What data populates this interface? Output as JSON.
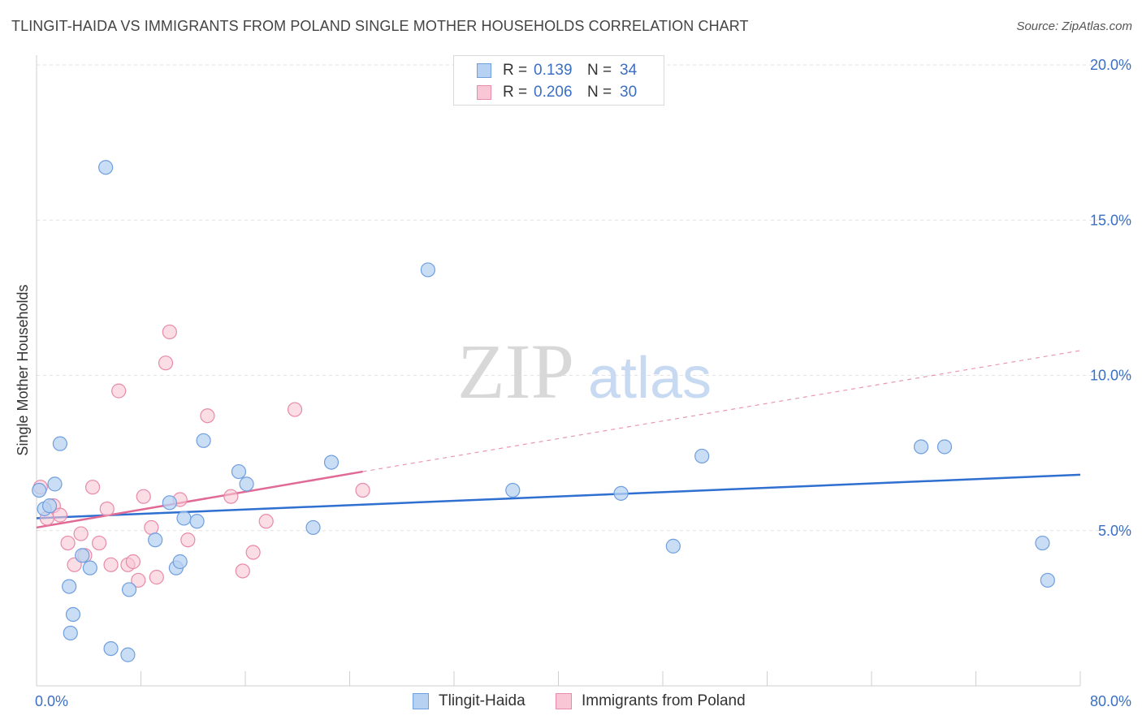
{
  "header": {
    "title": "TLINGIT-HAIDA VS IMMIGRANTS FROM POLAND SINGLE MOTHER HOUSEHOLDS CORRELATION CHART",
    "source": "Source: ZipAtlas.com"
  },
  "watermark": {
    "zip": "ZIP",
    "atlas": "atlas"
  },
  "legend": {
    "r_label": "R =",
    "n_label": "N =",
    "series": [
      {
        "r": "0.139",
        "n": "34"
      },
      {
        "r": "0.206",
        "n": "30"
      }
    ]
  },
  "colors": {
    "blue_fill": "#b7d1f2",
    "blue_stroke": "#6f9fe0",
    "blue_line": "#2f6fd0",
    "pink_fill": "#f8c6d4",
    "pink_stroke": "#e88aa8",
    "pink_line": "#e06a95",
    "axis_label": "#3a6fc4"
  },
  "chart_data": {
    "type": "scatter",
    "title": "TLINGIT-HAIDA VS IMMIGRANTS FROM POLAND SINGLE MOTHER HOUSEHOLDS CORRELATION CHART",
    "xlabel": "",
    "ylabel": "Single Mother Households",
    "xlim": [
      0,
      80
    ],
    "ylim": [
      0,
      20
    ],
    "x_tick_labels": [
      "0.0%",
      "80.0%"
    ],
    "y_ticks": [
      5,
      10,
      15,
      20
    ],
    "y_tick_labels": [
      "5.0%",
      "10.0%",
      "15.0%",
      "20.0%"
    ],
    "grid": true,
    "legend_position": "top-center",
    "series": [
      {
        "name": "Tlingit-Haida",
        "r": 0.139,
        "n": 34,
        "trend": {
          "x0": 0,
          "y0": 5.4,
          "x1": 80,
          "y1": 6.8
        },
        "points": [
          [
            0.2,
            6.3
          ],
          [
            0.6,
            5.7
          ],
          [
            1.0,
            5.8
          ],
          [
            1.4,
            6.5
          ],
          [
            1.8,
            7.8
          ],
          [
            2.5,
            3.2
          ],
          [
            2.8,
            2.3
          ],
          [
            2.6,
            1.7
          ],
          [
            3.5,
            4.2
          ],
          [
            4.1,
            3.8
          ],
          [
            5.3,
            16.7
          ],
          [
            5.7,
            1.2
          ],
          [
            7.0,
            1.0
          ],
          [
            7.1,
            3.1
          ],
          [
            9.1,
            4.7
          ],
          [
            10.2,
            5.9
          ],
          [
            10.7,
            3.8
          ],
          [
            11.0,
            4.0
          ],
          [
            11.3,
            5.4
          ],
          [
            12.3,
            5.3
          ],
          [
            12.8,
            7.9
          ],
          [
            15.5,
            6.9
          ],
          [
            16.1,
            6.5
          ],
          [
            21.2,
            5.1
          ],
          [
            22.6,
            7.2
          ],
          [
            30.0,
            13.4
          ],
          [
            36.5,
            6.3
          ],
          [
            44.8,
            6.2
          ],
          [
            48.8,
            4.5
          ],
          [
            51.0,
            7.4
          ],
          [
            67.8,
            7.7
          ],
          [
            69.6,
            7.7
          ],
          [
            77.5,
            3.4
          ],
          [
            77.1,
            4.6
          ]
        ]
      },
      {
        "name": "Immigrants from Poland",
        "r": 0.206,
        "n": 30,
        "trend": {
          "x0": 0,
          "y0": 5.1,
          "x1": 25,
          "y1": 6.9,
          "dashed_to_x": 80,
          "dashed_to_y": 10.8
        },
        "points": [
          [
            0.3,
            6.4
          ],
          [
            0.8,
            5.4
          ],
          [
            1.3,
            5.8
          ],
          [
            1.8,
            5.5
          ],
          [
            2.4,
            4.6
          ],
          [
            2.9,
            3.9
          ],
          [
            3.4,
            4.9
          ],
          [
            3.7,
            4.2
          ],
          [
            4.3,
            6.4
          ],
          [
            4.8,
            4.6
          ],
          [
            5.4,
            5.7
          ],
          [
            5.7,
            3.9
          ],
          [
            6.3,
            9.5
          ],
          [
            7.0,
            3.9
          ],
          [
            7.4,
            4.0
          ],
          [
            7.8,
            3.4
          ],
          [
            8.2,
            6.1
          ],
          [
            8.8,
            5.1
          ],
          [
            9.2,
            3.5
          ],
          [
            9.9,
            10.4
          ],
          [
            10.2,
            11.4
          ],
          [
            11.0,
            6.0
          ],
          [
            11.6,
            4.7
          ],
          [
            13.1,
            8.7
          ],
          [
            14.9,
            6.1
          ],
          [
            15.8,
            3.7
          ],
          [
            16.6,
            4.3
          ],
          [
            17.6,
            5.3
          ],
          [
            19.8,
            8.9
          ],
          [
            25.0,
            6.3
          ]
        ]
      }
    ]
  }
}
